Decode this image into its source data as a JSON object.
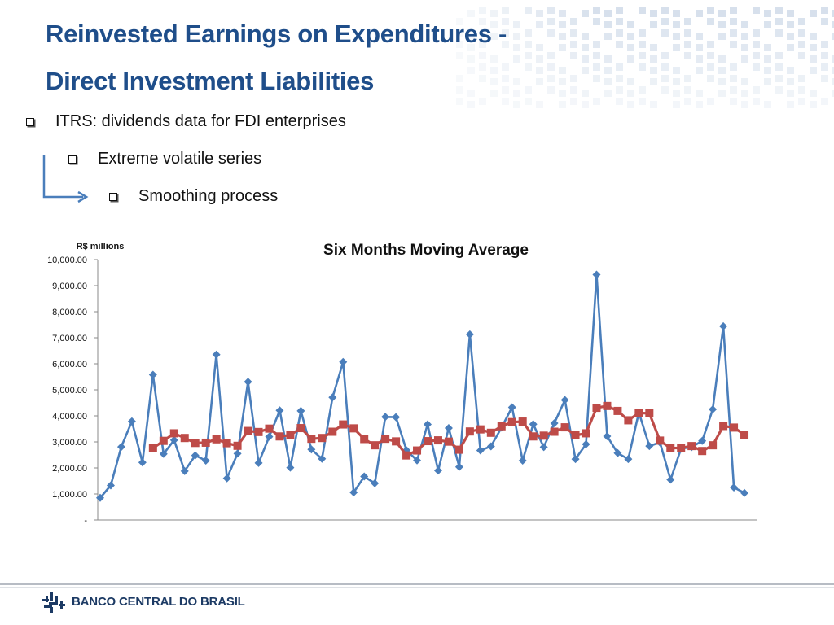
{
  "slide": {
    "title_line1": "Reinvested Earnings on Expenditures -",
    "title_line2": "Direct Investment Liabilities",
    "bullets": [
      "ITRS: dividends data for FDI enterprises",
      "Extreme volatile series",
      "Smoothing process"
    ],
    "brand": "BANCO CENTRAL DO BRASIL",
    "colors": {
      "title": "#1f4e8a",
      "series1": "#4a7ebb",
      "series2": "#be4b48"
    },
    "icons": {
      "bullet": "checkbox-bullet-icon",
      "arrow": "elbow-arrow-icon",
      "logo": "bcb-logo-icon"
    }
  },
  "chart_data": {
    "type": "line",
    "title": "Six Months Moving Average",
    "ylabel": "R$ millions",
    "ylim": [
      0,
      10000
    ],
    "yticks": [
      0,
      1000,
      2000,
      3000,
      4000,
      5000,
      6000,
      7000,
      8000,
      9000,
      10000
    ],
    "ytick_labels": [
      "-",
      "1,000.00",
      "2,000.00",
      "3,000.00",
      "4,000.00",
      "5,000.00",
      "6,000.00",
      "7,000.00",
      "8,000.00",
      "9,000.00",
      "10,000.00"
    ],
    "grid": false,
    "legend": "none",
    "x": [
      1,
      2,
      3,
      4,
      5,
      6,
      7,
      8,
      9,
      10,
      11,
      12,
      13,
      14,
      15,
      16,
      17,
      18,
      19,
      20,
      21,
      22,
      23,
      24,
      25,
      26,
      27,
      28,
      29,
      30,
      31,
      32,
      33,
      34,
      35,
      36,
      37,
      38,
      39,
      40,
      41,
      42,
      43,
      44,
      45,
      46,
      47,
      48,
      49,
      50,
      51,
      52,
      53,
      54,
      55,
      56,
      57,
      58,
      59,
      60,
      61,
      62,
      63
    ],
    "series": [
      {
        "values": [
          850,
          1330,
          2810,
          3790,
          2210,
          5580,
          2540,
          3070,
          1880,
          2480,
          2280,
          6350,
          1600,
          2550,
          5310,
          2190,
          3200,
          4210,
          2010,
          4190,
          2710,
          2350,
          4710,
          6070,
          1060,
          1670,
          1410,
          3960,
          3950,
          2680,
          2290,
          3670,
          1900,
          3530,
          2040,
          7130,
          2670,
          2830,
          3550,
          4330,
          2280,
          3680,
          2800,
          3720,
          4610,
          2340,
          2910,
          9420,
          3220,
          2570,
          2340,
          4130,
          2840,
          2980,
          1550,
          2740,
          2800,
          3040,
          4250,
          7440,
          1250,
          1040,
          null
        ],
        "marker": "diamond",
        "color": "#4a7ebb"
      },
      {
        "values": [
          null,
          null,
          null,
          null,
          null,
          2760,
          3040,
          3330,
          3150,
          2960,
          2970,
          3100,
          2950,
          2850,
          3420,
          3380,
          3510,
          3210,
          3260,
          3530,
          3120,
          3150,
          3390,
          3670,
          3520,
          3110,
          2870,
          3120,
          3020,
          2480,
          2670,
          3030,
          3060,
          3010,
          2700,
          3400,
          3480,
          3350,
          3600,
          3760,
          3780,
          3210,
          3240,
          3390,
          3560,
          3250,
          3330,
          4310,
          4380,
          4190,
          3830,
          4110,
          4100,
          3050,
          2760,
          2770,
          2840,
          2650,
          2870,
          3610,
          3550,
          3280,
          null
        ],
        "marker": "square",
        "color": "#be4b48"
      }
    ]
  }
}
